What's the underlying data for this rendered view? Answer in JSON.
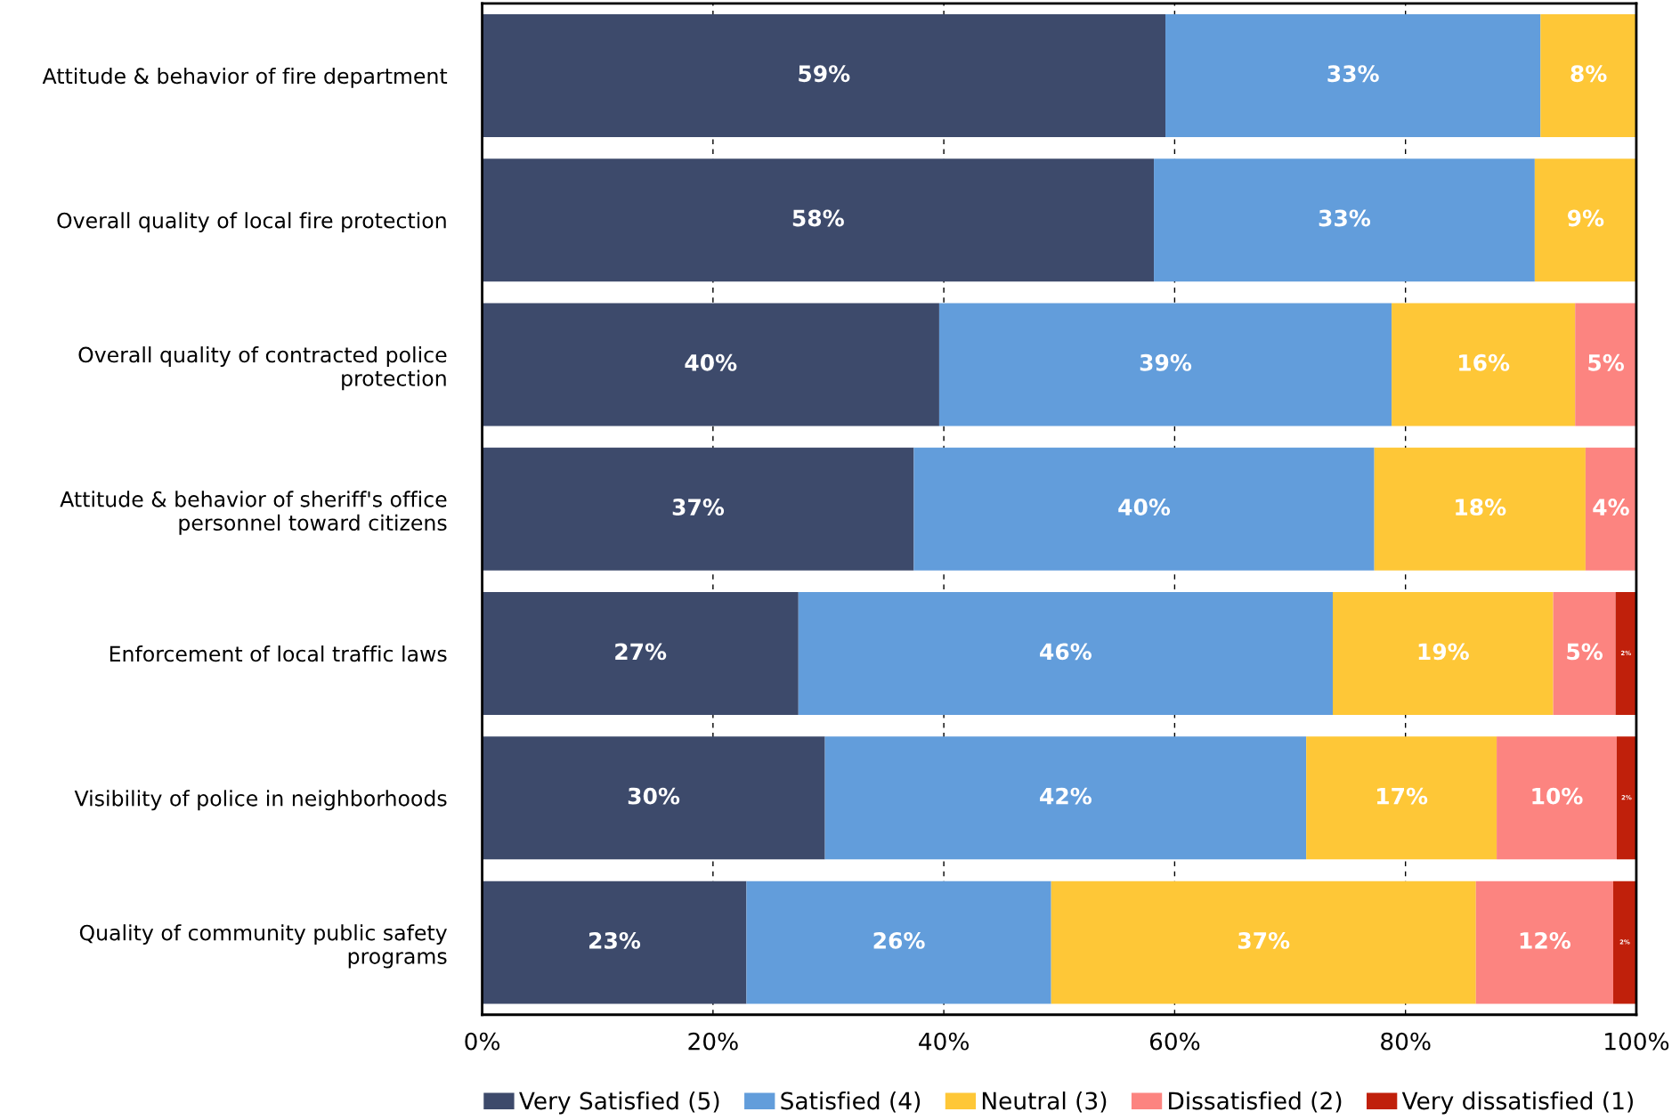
{
  "chart_data": {
    "type": "bar",
    "orientation": "horizontal",
    "stacked": true,
    "categories": [
      "Attitude & behavior of fire department",
      "Overall quality of local fire protection",
      "Overall quality of contracted police\nprotection",
      "Attitude & behavior of sheriff's office\npersonnel toward citizens",
      "Enforcement of local traffic laws",
      "Visibility of police in neighborhoods",
      "Quality of community public safety\nprograms"
    ],
    "series": [
      {
        "name": "Very Satisfied (5)",
        "color": "#3d4a6b",
        "values": [
          59.2,
          58.2,
          39.6,
          37.4,
          27.4,
          29.7,
          22.9
        ],
        "value_labels": [
          "59%",
          "58%",
          "40%",
          "37%",
          "27%",
          "30%",
          "23%"
        ]
      },
      {
        "name": "Satisfied (4)",
        "color": "#629ddb",
        "values": [
          32.5,
          33.0,
          39.2,
          39.9,
          46.3,
          41.7,
          26.4
        ],
        "value_labels": [
          "33%",
          "33%",
          "39%",
          "40%",
          "46%",
          "42%",
          "26%"
        ]
      },
      {
        "name": "Neutral (3)",
        "color": "#fec737",
        "values": [
          8.3,
          8.8,
          15.9,
          18.3,
          19.1,
          16.5,
          36.8
        ],
        "value_labels": [
          "8%",
          "9%",
          "16%",
          "18%",
          "19%",
          "17%",
          "37%"
        ]
      },
      {
        "name": "Dissatisfied (2)",
        "color": "#fc8480",
        "values": [
          null,
          null,
          5.3,
          4.4,
          5.4,
          10.4,
          11.9
        ],
        "value_labels": [
          null,
          null,
          "5%",
          "4%",
          "5%",
          "10%",
          "12%"
        ]
      },
      {
        "name": "Very dissatisfied (1)",
        "color": "#c0200b",
        "values": [
          null,
          null,
          null,
          null,
          1.8,
          1.7,
          2.0
        ],
        "value_labels": [
          null,
          null,
          null,
          null,
          "2%",
          "2%",
          "2%"
        ]
      }
    ],
    "xlim": [
      0,
      100
    ],
    "xticks": [
      {
        "value": 0,
        "label": "0%"
      },
      {
        "value": 20,
        "label": "20%"
      },
      {
        "value": 40,
        "label": "40%"
      },
      {
        "value": 60,
        "label": "60%"
      },
      {
        "value": 80,
        "label": "80%"
      },
      {
        "value": 100,
        "label": "100%"
      }
    ],
    "grid": "x",
    "legend": "bottom"
  }
}
